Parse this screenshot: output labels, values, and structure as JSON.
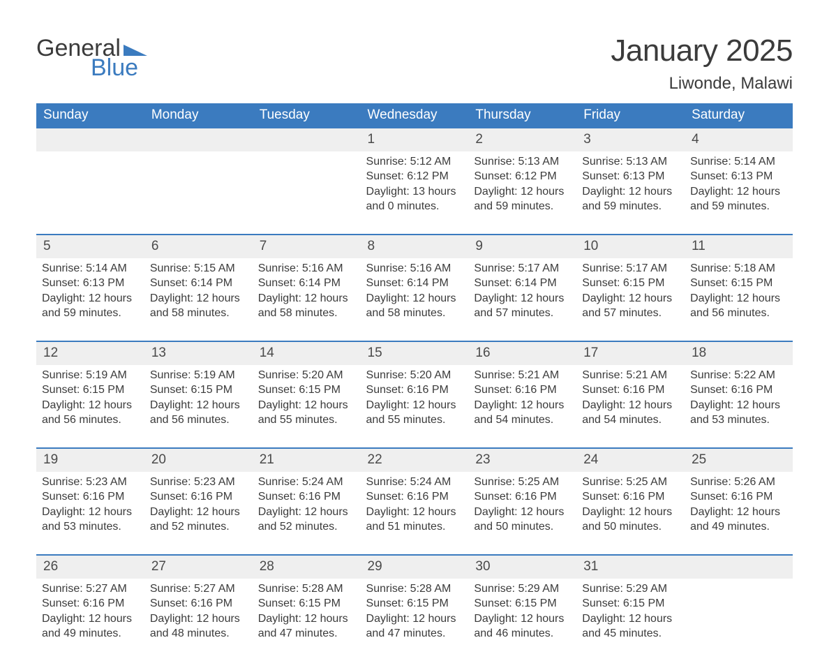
{
  "brand": {
    "word1": "General",
    "word2": "Blue",
    "tri_color": "#3b7bbf"
  },
  "title": "January 2025",
  "subtitle": "Liwonde, Malawi",
  "colors": {
    "header_bg": "#3b7bbf",
    "header_text": "#ffffff",
    "daynum_bg": "#efefef",
    "row_border": "#3b7bbf",
    "text": "#3b3b3b",
    "background": "#ffffff"
  },
  "typography": {
    "title_fontsize": 44,
    "subtitle_fontsize": 24,
    "header_fontsize": 19,
    "cell_fontsize": 16
  },
  "weekdays": [
    "Sunday",
    "Monday",
    "Tuesday",
    "Wednesday",
    "Thursday",
    "Friday",
    "Saturday"
  ],
  "weeks": [
    [
      null,
      null,
      null,
      {
        "day": "1",
        "sunrise": "Sunrise: 5:12 AM",
        "sunset": "Sunset: 6:12 PM",
        "dl1": "Daylight: 13 hours",
        "dl2": "and 0 minutes."
      },
      {
        "day": "2",
        "sunrise": "Sunrise: 5:13 AM",
        "sunset": "Sunset: 6:12 PM",
        "dl1": "Daylight: 12 hours",
        "dl2": "and 59 minutes."
      },
      {
        "day": "3",
        "sunrise": "Sunrise: 5:13 AM",
        "sunset": "Sunset: 6:13 PM",
        "dl1": "Daylight: 12 hours",
        "dl2": "and 59 minutes."
      },
      {
        "day": "4",
        "sunrise": "Sunrise: 5:14 AM",
        "sunset": "Sunset: 6:13 PM",
        "dl1": "Daylight: 12 hours",
        "dl2": "and 59 minutes."
      }
    ],
    [
      {
        "day": "5",
        "sunrise": "Sunrise: 5:14 AM",
        "sunset": "Sunset: 6:13 PM",
        "dl1": "Daylight: 12 hours",
        "dl2": "and 59 minutes."
      },
      {
        "day": "6",
        "sunrise": "Sunrise: 5:15 AM",
        "sunset": "Sunset: 6:14 PM",
        "dl1": "Daylight: 12 hours",
        "dl2": "and 58 minutes."
      },
      {
        "day": "7",
        "sunrise": "Sunrise: 5:16 AM",
        "sunset": "Sunset: 6:14 PM",
        "dl1": "Daylight: 12 hours",
        "dl2": "and 58 minutes."
      },
      {
        "day": "8",
        "sunrise": "Sunrise: 5:16 AM",
        "sunset": "Sunset: 6:14 PM",
        "dl1": "Daylight: 12 hours",
        "dl2": "and 58 minutes."
      },
      {
        "day": "9",
        "sunrise": "Sunrise: 5:17 AM",
        "sunset": "Sunset: 6:14 PM",
        "dl1": "Daylight: 12 hours",
        "dl2": "and 57 minutes."
      },
      {
        "day": "10",
        "sunrise": "Sunrise: 5:17 AM",
        "sunset": "Sunset: 6:15 PM",
        "dl1": "Daylight: 12 hours",
        "dl2": "and 57 minutes."
      },
      {
        "day": "11",
        "sunrise": "Sunrise: 5:18 AM",
        "sunset": "Sunset: 6:15 PM",
        "dl1": "Daylight: 12 hours",
        "dl2": "and 56 minutes."
      }
    ],
    [
      {
        "day": "12",
        "sunrise": "Sunrise: 5:19 AM",
        "sunset": "Sunset: 6:15 PM",
        "dl1": "Daylight: 12 hours",
        "dl2": "and 56 minutes."
      },
      {
        "day": "13",
        "sunrise": "Sunrise: 5:19 AM",
        "sunset": "Sunset: 6:15 PM",
        "dl1": "Daylight: 12 hours",
        "dl2": "and 56 minutes."
      },
      {
        "day": "14",
        "sunrise": "Sunrise: 5:20 AM",
        "sunset": "Sunset: 6:15 PM",
        "dl1": "Daylight: 12 hours",
        "dl2": "and 55 minutes."
      },
      {
        "day": "15",
        "sunrise": "Sunrise: 5:20 AM",
        "sunset": "Sunset: 6:16 PM",
        "dl1": "Daylight: 12 hours",
        "dl2": "and 55 minutes."
      },
      {
        "day": "16",
        "sunrise": "Sunrise: 5:21 AM",
        "sunset": "Sunset: 6:16 PM",
        "dl1": "Daylight: 12 hours",
        "dl2": "and 54 minutes."
      },
      {
        "day": "17",
        "sunrise": "Sunrise: 5:21 AM",
        "sunset": "Sunset: 6:16 PM",
        "dl1": "Daylight: 12 hours",
        "dl2": "and 54 minutes."
      },
      {
        "day": "18",
        "sunrise": "Sunrise: 5:22 AM",
        "sunset": "Sunset: 6:16 PM",
        "dl1": "Daylight: 12 hours",
        "dl2": "and 53 minutes."
      }
    ],
    [
      {
        "day": "19",
        "sunrise": "Sunrise: 5:23 AM",
        "sunset": "Sunset: 6:16 PM",
        "dl1": "Daylight: 12 hours",
        "dl2": "and 53 minutes."
      },
      {
        "day": "20",
        "sunrise": "Sunrise: 5:23 AM",
        "sunset": "Sunset: 6:16 PM",
        "dl1": "Daylight: 12 hours",
        "dl2": "and 52 minutes."
      },
      {
        "day": "21",
        "sunrise": "Sunrise: 5:24 AM",
        "sunset": "Sunset: 6:16 PM",
        "dl1": "Daylight: 12 hours",
        "dl2": "and 52 minutes."
      },
      {
        "day": "22",
        "sunrise": "Sunrise: 5:24 AM",
        "sunset": "Sunset: 6:16 PM",
        "dl1": "Daylight: 12 hours",
        "dl2": "and 51 minutes."
      },
      {
        "day": "23",
        "sunrise": "Sunrise: 5:25 AM",
        "sunset": "Sunset: 6:16 PM",
        "dl1": "Daylight: 12 hours",
        "dl2": "and 50 minutes."
      },
      {
        "day": "24",
        "sunrise": "Sunrise: 5:25 AM",
        "sunset": "Sunset: 6:16 PM",
        "dl1": "Daylight: 12 hours",
        "dl2": "and 50 minutes."
      },
      {
        "day": "25",
        "sunrise": "Sunrise: 5:26 AM",
        "sunset": "Sunset: 6:16 PM",
        "dl1": "Daylight: 12 hours",
        "dl2": "and 49 minutes."
      }
    ],
    [
      {
        "day": "26",
        "sunrise": "Sunrise: 5:27 AM",
        "sunset": "Sunset: 6:16 PM",
        "dl1": "Daylight: 12 hours",
        "dl2": "and 49 minutes."
      },
      {
        "day": "27",
        "sunrise": "Sunrise: 5:27 AM",
        "sunset": "Sunset: 6:16 PM",
        "dl1": "Daylight: 12 hours",
        "dl2": "and 48 minutes."
      },
      {
        "day": "28",
        "sunrise": "Sunrise: 5:28 AM",
        "sunset": "Sunset: 6:15 PM",
        "dl1": "Daylight: 12 hours",
        "dl2": "and 47 minutes."
      },
      {
        "day": "29",
        "sunrise": "Sunrise: 5:28 AM",
        "sunset": "Sunset: 6:15 PM",
        "dl1": "Daylight: 12 hours",
        "dl2": "and 47 minutes."
      },
      {
        "day": "30",
        "sunrise": "Sunrise: 5:29 AM",
        "sunset": "Sunset: 6:15 PM",
        "dl1": "Daylight: 12 hours",
        "dl2": "and 46 minutes."
      },
      {
        "day": "31",
        "sunrise": "Sunrise: 5:29 AM",
        "sunset": "Sunset: 6:15 PM",
        "dl1": "Daylight: 12 hours",
        "dl2": "and 45 minutes."
      },
      null
    ]
  ]
}
